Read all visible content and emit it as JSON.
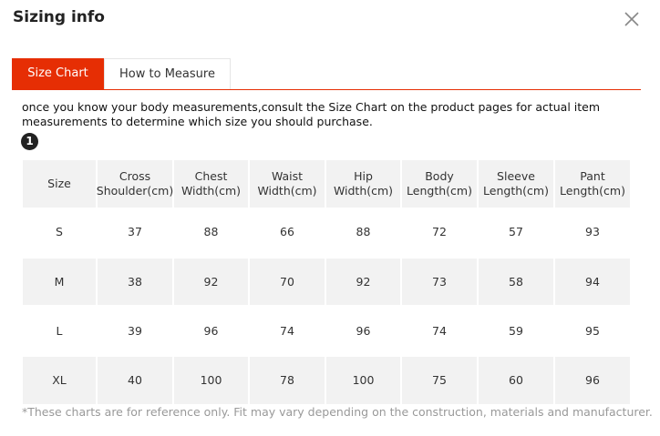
{
  "header": {
    "title": "Sizing info"
  },
  "tabs": [
    "Size Chart",
    "How to Measure"
  ],
  "description": "once you know your body measurements,consult the Size Chart on the product pages for actual item measurements to determine which size you should purchase.",
  "step_badge": "1",
  "table": {
    "columns": [
      [
        "Size"
      ],
      [
        "Cross",
        "Shoulder(cm)"
      ],
      [
        "Chest",
        "Width(cm)"
      ],
      [
        "Waist",
        "Width(cm)"
      ],
      [
        "Hip",
        "Width(cm)"
      ],
      [
        "Body",
        "Length(cm)"
      ],
      [
        "Sleeve",
        "Length(cm)"
      ],
      [
        "Pant",
        "Length(cm)"
      ]
    ],
    "rows": [
      [
        "S",
        37,
        88,
        66,
        88,
        72,
        57,
        93
      ],
      [
        "M",
        38,
        92,
        70,
        92,
        73,
        58,
        94
      ],
      [
        "L",
        39,
        96,
        74,
        96,
        74,
        59,
        95
      ],
      [
        "XL",
        40,
        100,
        78,
        100,
        75,
        60,
        96
      ]
    ]
  },
  "footnote": "*These charts are for reference only. Fit may vary depending on the construction, materials and manufacturer."
}
